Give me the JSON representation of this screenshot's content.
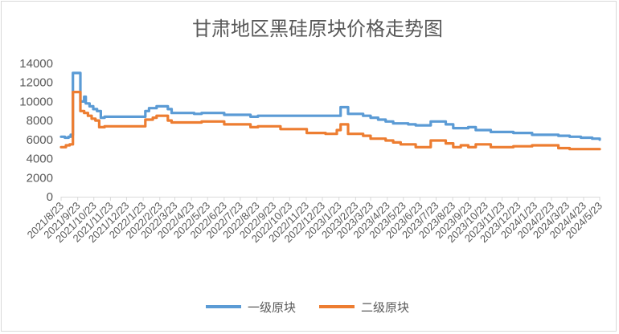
{
  "chart_data": {
    "type": "line",
    "title": "甘肃地区黑硅原块价格走势图",
    "xlabel": "",
    "ylabel": "",
    "ylim": [
      0,
      14000
    ],
    "yticks": [
      0,
      2000,
      4000,
      6000,
      8000,
      10000,
      12000,
      14000
    ],
    "grid": false,
    "legend_position": "bottom",
    "x_tick_labels": [
      "2021/8/23",
      "2021/9/23",
      "2021/10/23",
      "2021/11/23",
      "2021/12/23",
      "2022/1/23",
      "2022/2/23",
      "2022/3/23",
      "2022/4/23",
      "2022/5/23",
      "2022/6/23",
      "2022/7/23",
      "2022/8/23",
      "2022/9/23",
      "2022/10/23",
      "2022/11/23",
      "2022/12/23",
      "2023/1/23",
      "2023/2/23",
      "2023/3/23",
      "2023/4/23",
      "2023/5/23",
      "2023/6/23",
      "2023/7/23",
      "2023/8/23",
      "2023/9/23",
      "2023/10/23",
      "2023/11/23",
      "2023/12/23",
      "2024/1/23",
      "2024/2/23",
      "2024/3/23",
      "2024/4/23",
      "2024/5/23"
    ],
    "series": [
      {
        "name": "一级原块",
        "color": "#5b9bd5",
        "points": [
          [
            "2021-08-23",
            6300
          ],
          [
            "2021-08-30",
            6200
          ],
          [
            "2021-09-06",
            6300
          ],
          [
            "2021-09-10",
            6500
          ],
          [
            "2021-09-14",
            13000
          ],
          [
            "2021-09-28",
            10000
          ],
          [
            "2021-10-05",
            10500
          ],
          [
            "2021-10-08",
            9800
          ],
          [
            "2021-10-15",
            9500
          ],
          [
            "2021-10-22",
            9200
          ],
          [
            "2021-10-29",
            9000
          ],
          [
            "2021-11-05",
            8300
          ],
          [
            "2021-11-12",
            8400
          ],
          [
            "2022-01-20",
            8400
          ],
          [
            "2022-01-27",
            9000
          ],
          [
            "2022-02-03",
            9300
          ],
          [
            "2022-02-17",
            9500
          ],
          [
            "2022-03-10",
            9200
          ],
          [
            "2022-03-17",
            8800
          ],
          [
            "2022-04-28",
            8700
          ],
          [
            "2022-05-12",
            8800
          ],
          [
            "2022-06-23",
            8600
          ],
          [
            "2022-08-11",
            8400
          ],
          [
            "2022-08-25",
            8500
          ],
          [
            "2023-01-26",
            9400
          ],
          [
            "2023-02-09",
            8700
          ],
          [
            "2023-03-09",
            8500
          ],
          [
            "2023-03-23",
            8300
          ],
          [
            "2023-04-06",
            8100
          ],
          [
            "2023-04-20",
            7900
          ],
          [
            "2023-05-04",
            7700
          ],
          [
            "2023-06-01",
            7600
          ],
          [
            "2023-06-15",
            7500
          ],
          [
            "2023-07-13",
            7900
          ],
          [
            "2023-08-10",
            7600
          ],
          [
            "2023-08-24",
            7200
          ],
          [
            "2023-09-21",
            7300
          ],
          [
            "2023-10-05",
            7000
          ],
          [
            "2023-11-02",
            6800
          ],
          [
            "2023-12-14",
            6700
          ],
          [
            "2024-01-18",
            6500
          ],
          [
            "2024-03-07",
            6400
          ],
          [
            "2024-03-28",
            6300
          ],
          [
            "2024-04-18",
            6200
          ],
          [
            "2024-05-09",
            6100
          ],
          [
            "2024-05-23",
            6000
          ]
        ]
      },
      {
        "name": "二级原块",
        "color": "#ed7d31",
        "points": [
          [
            "2021-08-23",
            5200
          ],
          [
            "2021-09-01",
            5400
          ],
          [
            "2021-09-08",
            5500
          ],
          [
            "2021-09-14",
            11000
          ],
          [
            "2021-09-28",
            9000
          ],
          [
            "2021-10-05",
            8800
          ],
          [
            "2021-10-12",
            8500
          ],
          [
            "2021-10-19",
            8200
          ],
          [
            "2021-10-26",
            8000
          ],
          [
            "2021-11-02",
            7300
          ],
          [
            "2021-11-12",
            7400
          ],
          [
            "2022-01-20",
            7400
          ],
          [
            "2022-01-27",
            8100
          ],
          [
            "2022-02-10",
            8300
          ],
          [
            "2022-02-17",
            8500
          ],
          [
            "2022-03-10",
            8000
          ],
          [
            "2022-03-17",
            7800
          ],
          [
            "2022-05-12",
            7900
          ],
          [
            "2022-06-23",
            7600
          ],
          [
            "2022-08-11",
            7300
          ],
          [
            "2022-08-25",
            7400
          ],
          [
            "2022-10-06",
            7100
          ],
          [
            "2022-11-24",
            6700
          ],
          [
            "2022-12-29",
            6600
          ],
          [
            "2023-01-19",
            7000
          ],
          [
            "2023-01-26",
            7600
          ],
          [
            "2023-02-09",
            6600
          ],
          [
            "2023-03-09",
            6400
          ],
          [
            "2023-03-23",
            6100
          ],
          [
            "2023-04-20",
            5900
          ],
          [
            "2023-05-04",
            5700
          ],
          [
            "2023-05-18",
            5500
          ],
          [
            "2023-06-15",
            5200
          ],
          [
            "2023-07-13",
            5900
          ],
          [
            "2023-08-10",
            5600
          ],
          [
            "2023-08-24",
            5200
          ],
          [
            "2023-09-07",
            5400
          ],
          [
            "2023-09-21",
            5200
          ],
          [
            "2023-10-05",
            5500
          ],
          [
            "2023-11-02",
            5200
          ],
          [
            "2023-12-14",
            5300
          ],
          [
            "2024-01-18",
            5400
          ],
          [
            "2024-03-07",
            5100
          ],
          [
            "2024-03-28",
            5000
          ],
          [
            "2024-05-23",
            5000
          ]
        ]
      }
    ]
  }
}
